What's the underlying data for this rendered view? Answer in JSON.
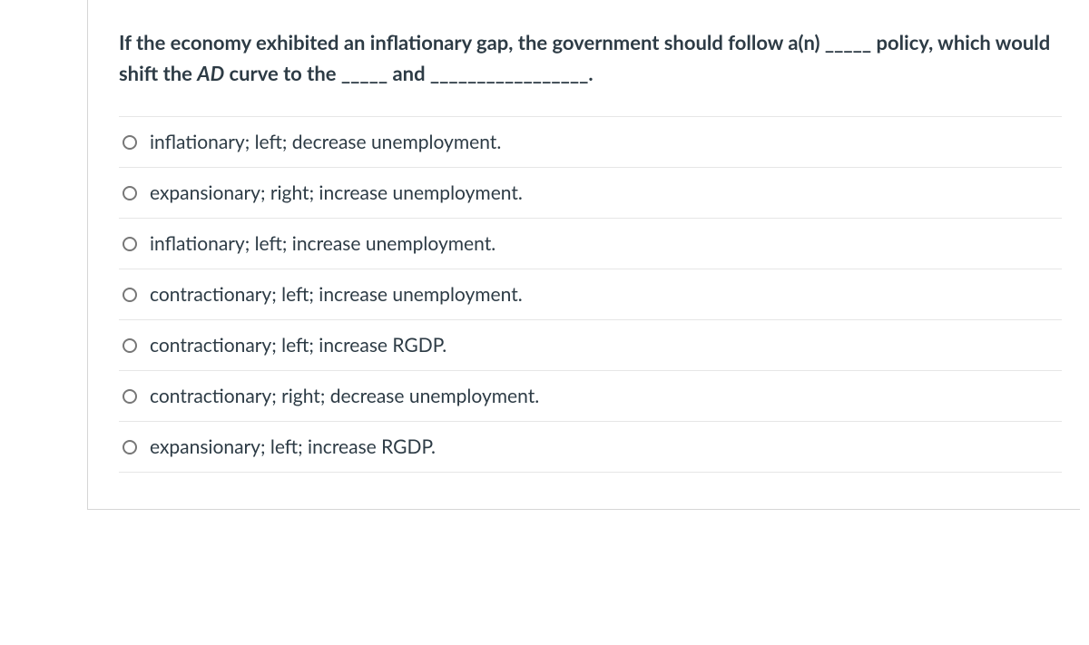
{
  "question": {
    "text_parts": {
      "part1": "If the economy exhibited an inflationary gap, the government should follow a(n) _____ policy,  which would shift the ",
      "italic": "AD",
      "part2": " curve to the _____ and _________________."
    }
  },
  "options": [
    {
      "label": "inflationary; left; decrease unemployment."
    },
    {
      "label": "expansionary; right; increase unemployment."
    },
    {
      "label": "inflationary; left; increase unemployment."
    },
    {
      "label": "contractionary; left; increase unemployment."
    },
    {
      "label": "contractionary; left; increase RGDP."
    },
    {
      "label": "contractionary; right; decrease unemployment."
    },
    {
      "label": "expansionary; left; increase RGDP."
    }
  ],
  "colors": {
    "text": "#2d3b45",
    "border": "#d6d6d6",
    "option_divider": "#e6e6e6",
    "radio_border": "#777777",
    "background": "#ffffff"
  },
  "typography": {
    "question_fontsize": 22,
    "question_fontweight": 700,
    "option_fontsize": 21,
    "option_fontweight": 400
  }
}
